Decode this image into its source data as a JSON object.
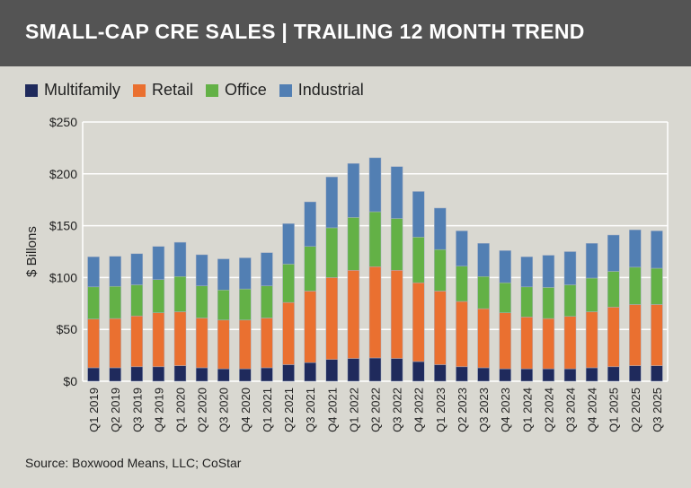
{
  "header": {
    "title": "SMALL-CAP CRE SALES | TRAILING 12 MONTH TREND"
  },
  "source": "Source: Boxwood Means, LLC; CoStar",
  "colors": {
    "Multifamily": "#1f2a5c",
    "Retail": "#ea7030",
    "Office": "#63b146",
    "Industrial": "#527fb3",
    "background": "#d9d8d1",
    "header": "#545454"
  },
  "chart_data": {
    "type": "bar",
    "stacked": true,
    "title": "SMALL-CAP CRE SALES | TRAILING 12 MONTH TREND",
    "ylabel": "$ Billons",
    "xlabel": "",
    "ylim": [
      0,
      250
    ],
    "yticks": [
      "$0",
      "$50",
      "$100",
      "$150",
      "$200",
      "$250"
    ],
    "ytick_values": [
      0,
      50,
      100,
      150,
      200,
      250
    ],
    "grid": true,
    "legend_position": "top-left",
    "categories": [
      "Q1 2019",
      "Q2 2019",
      "Q3 2019",
      "Q4 2019",
      "Q1 2020",
      "Q2 2020",
      "Q3 2020",
      "Q4 2020",
      "Q1 2021",
      "Q2 2021",
      "Q3 2021",
      "Q4 2021",
      "Q1 2022",
      "Q2 2022",
      "Q3 2022",
      "Q4 2022",
      "Q1 2023",
      "Q2 2023",
      "Q3 2023",
      "Q4 2023",
      "Q1 2024",
      "Q2 2024",
      "Q3 2024",
      "Q4 2024",
      "Q1 2025",
      "Q2 2025",
      "Q3 2025"
    ],
    "series": [
      {
        "name": "Multifamily",
        "values": [
          13,
          13,
          14,
          14,
          15,
          13,
          12,
          12,
          13,
          16,
          18,
          21,
          22,
          22.5,
          22,
          19,
          16,
          14,
          13,
          12,
          12,
          12,
          12,
          13,
          14,
          15,
          15
        ]
      },
      {
        "name": "Retail",
        "values": [
          47,
          47.5,
          49,
          52,
          52,
          48,
          47,
          47,
          48,
          60,
          69,
          79,
          85,
          88,
          85,
          76,
          71,
          63,
          57,
          54,
          50,
          48.5,
          50.5,
          54,
          57.5,
          59,
          59
        ]
      },
      {
        "name": "Office",
        "values": [
          31,
          31,
          30,
          32,
          34,
          31,
          29,
          30,
          31,
          37,
          43,
          48,
          51,
          53,
          50,
          44,
          40,
          34,
          31,
          29,
          29,
          30,
          30.5,
          32.5,
          34.5,
          36,
          35
        ]
      },
      {
        "name": "Industrial",
        "values": [
          29,
          29,
          30,
          32,
          33,
          30,
          30,
          30,
          32,
          39,
          43,
          49,
          52,
          52,
          50,
          44,
          40,
          34,
          32,
          31,
          29,
          31,
          32,
          33.5,
          35,
          36,
          36
        ]
      }
    ]
  }
}
